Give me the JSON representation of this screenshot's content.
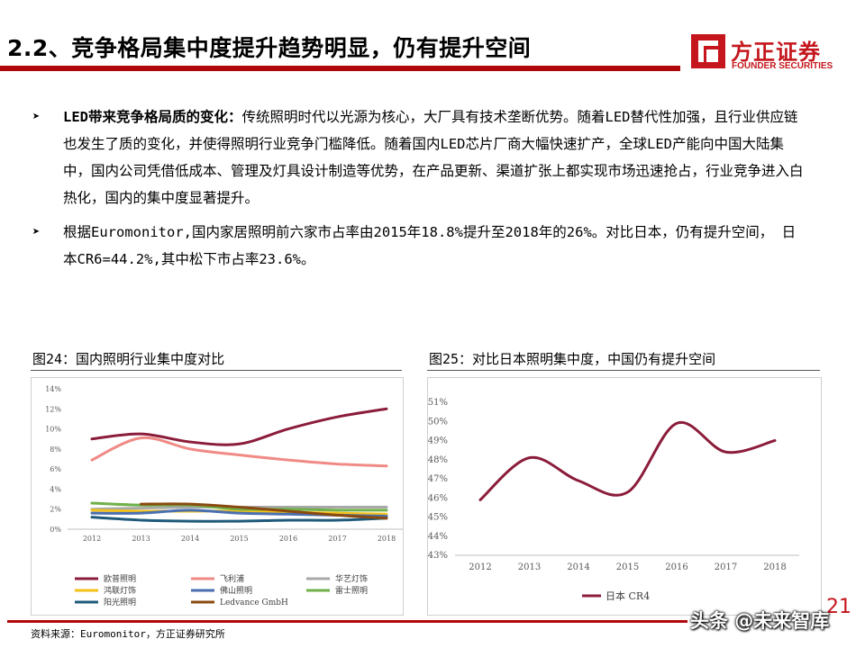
{
  "header": {
    "title": "2.2、竞争格局集中度提升趋势明显，仍有提升空间",
    "logo_cn": "方正证券",
    "logo_en": "FOUNDER SECURITIES"
  },
  "bullets": [
    {
      "bold": "LED带来竞争格局质的变化：",
      "text": "传统照明时代以光源为核心，大厂具有技术垄断优势。随着LED替代性加强，且行业供应链也发生了质的变化，并使得照明行业竞争门槛降低。随着国内LED芯片厂商大幅快速扩产，全球LED产能向中国大陆集中，国内公司凭借低成本、管理及灯具设计制造等优势，在产品更新、渠道扩张上都实现市场迅速抢占，行业竞争进入白热化，国内的集中度显著提升。"
    },
    {
      "bold": "",
      "text": "根据Euromonitor,国内家居照明前六家市占率由2015年18.8%提升至2018年的26%。对比日本，仍有提升空间， 日本CR6=44.2%,其中松下市占率23.6%。"
    }
  ],
  "figure24": {
    "title": "图24：国内照明行业集中度对比"
  },
  "figure25": {
    "title": "图25：对比日本照明集中度，中国仍有提升空间"
  },
  "source": "资料来源：Euromonitor，方正证券研究所",
  "page_number": "21",
  "watermark": "头条 @未来智库",
  "chart_data": [
    {
      "type": "line",
      "x": [
        2012,
        2013,
        2014,
        2015,
        2016,
        2017,
        2018
      ],
      "ylim": [
        0,
        14
      ],
      "yticks": [
        "0%",
        "2%",
        "4%",
        "6%",
        "8%",
        "10%",
        "12%",
        "14%"
      ],
      "series": [
        {
          "name": "欧普照明",
          "color": "#8b1c3a",
          "values": [
            9.0,
            9.5,
            8.7,
            8.5,
            10.0,
            11.2,
            12.0
          ]
        },
        {
          "name": "飞利浦",
          "color": "#f08a86",
          "values": [
            6.9,
            9.1,
            8.0,
            7.4,
            6.9,
            6.5,
            6.3
          ]
        },
        {
          "name": "华艺灯饰",
          "color": "#a8a8a8",
          "values": [
            2.0,
            2.1,
            2.2,
            2.2,
            2.2,
            2.2,
            2.2
          ]
        },
        {
          "name": "鸿联灯饰",
          "color": "#f3c21a",
          "values": [
            1.9,
            1.8,
            1.8,
            1.8,
            1.7,
            1.6,
            1.5
          ]
        },
        {
          "name": "佛山照明",
          "color": "#4a6fb0",
          "values": [
            1.6,
            1.6,
            1.9,
            1.6,
            1.5,
            1.4,
            1.3
          ]
        },
        {
          "name": "雷士照明",
          "color": "#6fb04a",
          "values": [
            2.6,
            2.4,
            2.4,
            2.0,
            2.0,
            1.9,
            1.9
          ]
        },
        {
          "name": "阳光照明",
          "color": "#1f5a7a",
          "values": [
            1.2,
            0.9,
            0.8,
            0.8,
            0.9,
            0.9,
            1.1
          ]
        },
        {
          "name": "Ledvance GmbH",
          "color": "#8a4a10",
          "values": [
            null,
            2.5,
            2.5,
            2.2,
            1.8,
            1.4,
            1.1
          ]
        }
      ]
    },
    {
      "type": "line",
      "x": [
        2012,
        2013,
        2014,
        2015,
        2016,
        2017,
        2018
      ],
      "ylim": [
        43,
        51
      ],
      "yticks": [
        "43%",
        "44%",
        "45%",
        "46%",
        "47%",
        "48%",
        "49%",
        "50%",
        "51%"
      ],
      "series": [
        {
          "name": "日本 CR4",
          "color": "#8b1c3a",
          "values": [
            45.9,
            48.1,
            46.9,
            46.3,
            49.9,
            48.4,
            49.0
          ]
        }
      ]
    }
  ]
}
